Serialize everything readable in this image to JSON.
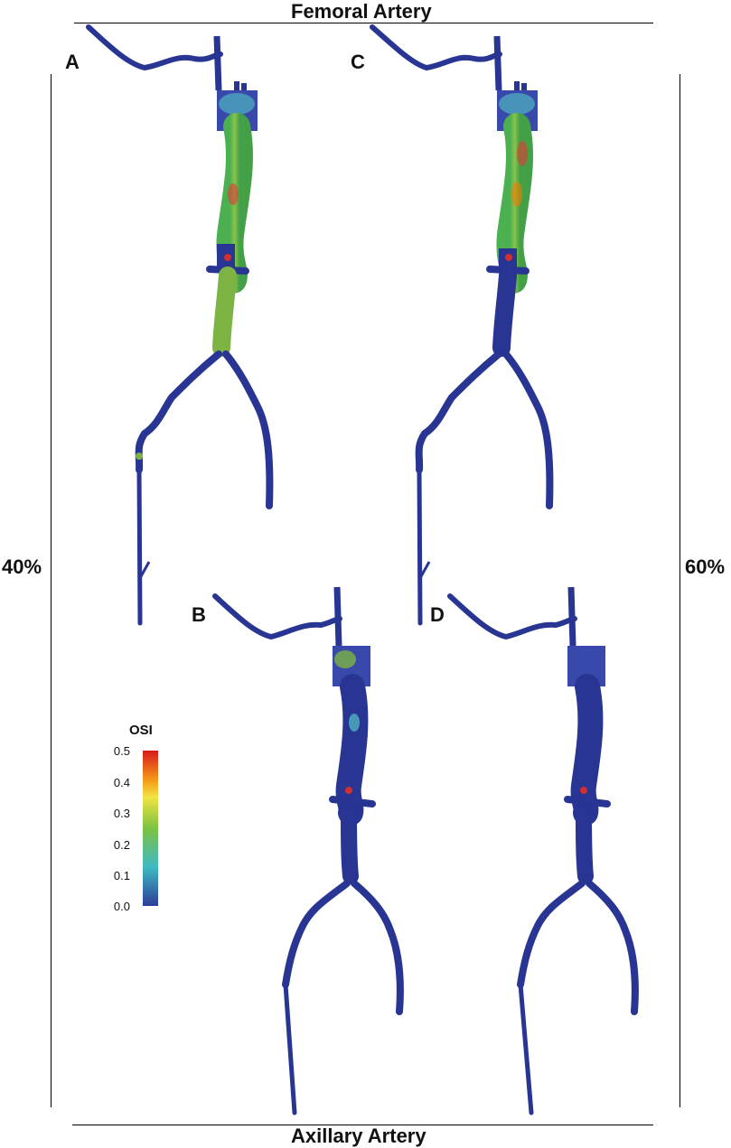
{
  "header": {
    "top_title": "Femoral Artery",
    "bottom_title": "Axillary Artery"
  },
  "sides": {
    "left": "40%",
    "right": "60%"
  },
  "panels": [
    {
      "id": "A",
      "label": "A"
    },
    {
      "id": "B",
      "label": "B"
    },
    {
      "id": "C",
      "label": "C"
    },
    {
      "id": "D",
      "label": "D"
    }
  ],
  "colorbar": {
    "title": "OSI",
    "ticks": [
      "0.5",
      "0.4",
      "0.3",
      "0.2",
      "0.1",
      "0.0"
    ],
    "min": 0.0,
    "max": 0.5,
    "colors": [
      "#d7191c",
      "#f6a01a",
      "#f0e442",
      "#7cc242",
      "#3fb9c4",
      "#2c3e98"
    ]
  },
  "colors": {
    "low": "#283593",
    "mid": "#7cb342",
    "high": "#e53935",
    "teal": "#4fb3c0"
  }
}
